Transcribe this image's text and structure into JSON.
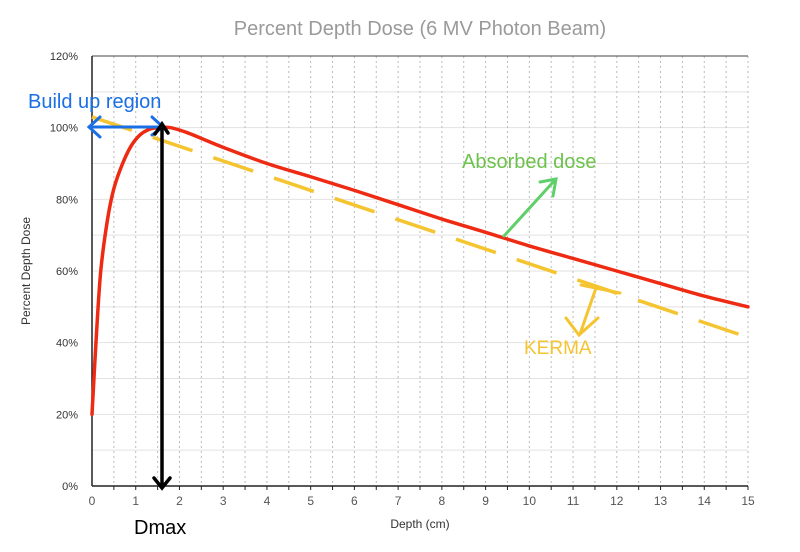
{
  "chart_data": {
    "type": "line",
    "title": "Percent Depth Dose (6 MV Photon Beam)",
    "xlabel": "Depth (cm)",
    "ylabel": "Percent Depth Dose",
    "xlim": [
      0,
      15
    ],
    "ylim": [
      0,
      120
    ],
    "x_ticks": [
      "0",
      "1",
      "2",
      "3",
      "4",
      "5",
      "6",
      "7",
      "8",
      "9",
      "10",
      "11",
      "12",
      "13",
      "14",
      "15"
    ],
    "y_ticks": [
      "0%",
      "20%",
      "40%",
      "60%",
      "80%",
      "100%",
      "120%"
    ],
    "grid": true,
    "series": [
      {
        "name": "Absorbed dose",
        "color": "#ee2a12",
        "style": "solid",
        "x": [
          0,
          0.1,
          0.2,
          0.35,
          0.5,
          0.7,
          0.9,
          1.1,
          1.3,
          1.5,
          1.8,
          2.2,
          2.6,
          3,
          4,
          5,
          6,
          7,
          8,
          9,
          10,
          11,
          12,
          13,
          14,
          15
        ],
        "y": [
          20,
          42,
          60,
          74,
          83,
          90,
          95,
          98,
          99.5,
          100,
          100,
          98.5,
          96.5,
          94.5,
          90,
          86.3,
          82.5,
          78.5,
          74.5,
          70.8,
          67,
          63.5,
          60,
          56.5,
          53,
          50
        ]
      },
      {
        "name": "KERMA",
        "color": "#f5c431",
        "style": "dashed",
        "x": [
          0,
          15
        ],
        "y": [
          103,
          41.5
        ]
      }
    ],
    "annotations": {
      "build_up": {
        "text": "Build up region",
        "color": "#1a6ee6"
      },
      "dmax": {
        "text": "Dmax",
        "color": "#000000",
        "x": 1.6
      },
      "absorbed": {
        "text": "Absorbed dose",
        "color": "#6cc24a"
      },
      "kerma": {
        "text": "KERMA",
        "color": "#f5c431"
      }
    }
  }
}
